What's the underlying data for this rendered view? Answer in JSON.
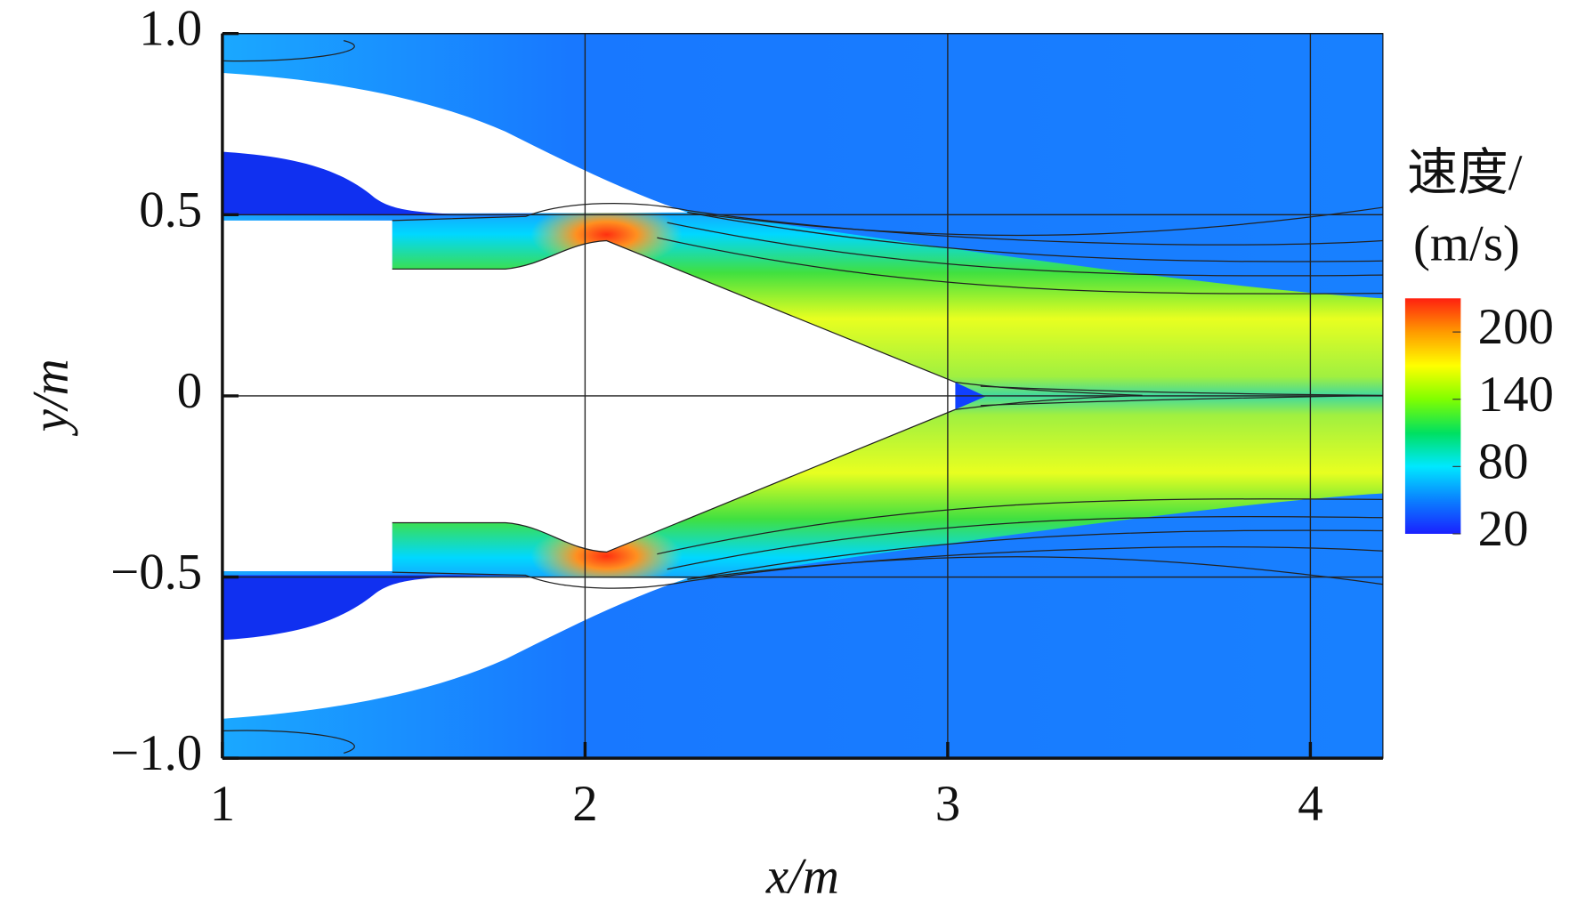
{
  "chart_data": {
    "type": "contour",
    "xlabel": "x/m",
    "ylabel": "y/m",
    "xlim": [
      1,
      4.2
    ],
    "ylim": [
      -1,
      1
    ],
    "xticks": [
      1,
      2,
      3,
      4
    ],
    "yticks": [
      {
        "value": -1,
        "label": "−1.0"
      },
      {
        "value": -0.5,
        "label": "−0.5"
      },
      0,
      0.5,
      {
        "value": 1,
        "label": "1.0"
      }
    ],
    "grid": true,
    "colorbar": {
      "label": [
        "速度/",
        "(m/s)"
      ],
      "lim": [
        20,
        230
      ],
      "ticks": [
        20,
        80,
        140,
        200
      ],
      "colors": [
        "#1a20ff",
        "#0a80ff",
        "#00e8ff",
        "#00e060",
        "#80ff00",
        "#ffff00",
        "#ff9a00",
        "#ff2010"
      ]
    }
  }
}
